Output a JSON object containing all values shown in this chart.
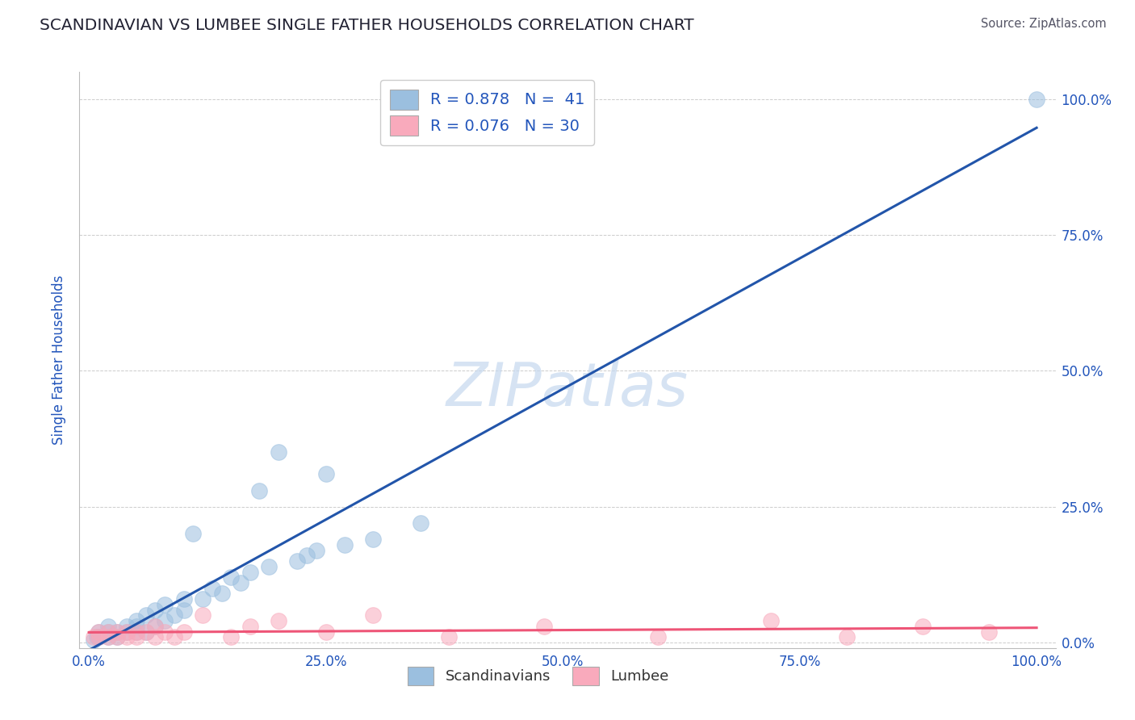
{
  "title": "SCANDINAVIAN VS LUMBEE SINGLE FATHER HOUSEHOLDS CORRELATION CHART",
  "source": "Source: ZipAtlas.com",
  "ylabel": "Single Father Households",
  "watermark": "ZIPatlas",
  "legend_blue_r": "R = 0.878",
  "legend_blue_n": "N =  41",
  "legend_pink_r": "R = 0.076",
  "legend_pink_n": "N = 30",
  "blue_color": "#9BBFDF",
  "pink_color": "#F9AABC",
  "blue_line_color": "#2255AA",
  "pink_line_color": "#EE5577",
  "scandinavian_x": [
    0.005,
    0.008,
    0.01,
    0.01,
    0.02,
    0.02,
    0.02,
    0.03,
    0.03,
    0.04,
    0.04,
    0.05,
    0.05,
    0.05,
    0.06,
    0.06,
    0.07,
    0.07,
    0.08,
    0.08,
    0.09,
    0.1,
    0.1,
    0.11,
    0.12,
    0.13,
    0.14,
    0.15,
    0.16,
    0.17,
    0.18,
    0.19,
    0.2,
    0.22,
    0.23,
    0.24,
    0.25,
    0.27,
    0.3,
    0.35,
    1.0
  ],
  "scandinavian_y": [
    0.005,
    0.01,
    0.01,
    0.02,
    0.01,
    0.02,
    0.03,
    0.01,
    0.02,
    0.02,
    0.03,
    0.02,
    0.03,
    0.04,
    0.02,
    0.05,
    0.03,
    0.06,
    0.04,
    0.07,
    0.05,
    0.06,
    0.08,
    0.2,
    0.08,
    0.1,
    0.09,
    0.12,
    0.11,
    0.13,
    0.28,
    0.14,
    0.35,
    0.15,
    0.16,
    0.17,
    0.31,
    0.18,
    0.19,
    0.22,
    1.0
  ],
  "lumbee_x": [
    0.005,
    0.01,
    0.01,
    0.02,
    0.02,
    0.03,
    0.03,
    0.04,
    0.04,
    0.05,
    0.05,
    0.06,
    0.07,
    0.07,
    0.08,
    0.09,
    0.1,
    0.12,
    0.15,
    0.17,
    0.2,
    0.25,
    0.3,
    0.38,
    0.48,
    0.6,
    0.72,
    0.8,
    0.88,
    0.95
  ],
  "lumbee_y": [
    0.01,
    0.01,
    0.02,
    0.01,
    0.02,
    0.01,
    0.02,
    0.01,
    0.02,
    0.01,
    0.02,
    0.02,
    0.01,
    0.03,
    0.02,
    0.01,
    0.02,
    0.05,
    0.01,
    0.03,
    0.04,
    0.02,
    0.05,
    0.01,
    0.03,
    0.01,
    0.04,
    0.01,
    0.03,
    0.02
  ],
  "background_color": "#ffffff",
  "grid_color": "#cccccc",
  "title_color": "#222233",
  "axis_label_color": "#2255BB",
  "right_tick_color": "#2255BB",
  "legend_label_color": "#2255BB",
  "bottom_legend_label_color": "#333333",
  "x_ticks": [
    0.0,
    0.25,
    0.5,
    0.75,
    1.0
  ],
  "x_tick_labels": [
    "0.0%",
    "25.0%",
    "50.0%",
    "75.0%",
    "100.0%"
  ],
  "y_ticks": [
    0.0,
    0.25,
    0.5,
    0.75,
    1.0
  ],
  "y_tick_labels": [
    "0.0%",
    "25.0%",
    "50.0%",
    "75.0%",
    "100.0%"
  ]
}
